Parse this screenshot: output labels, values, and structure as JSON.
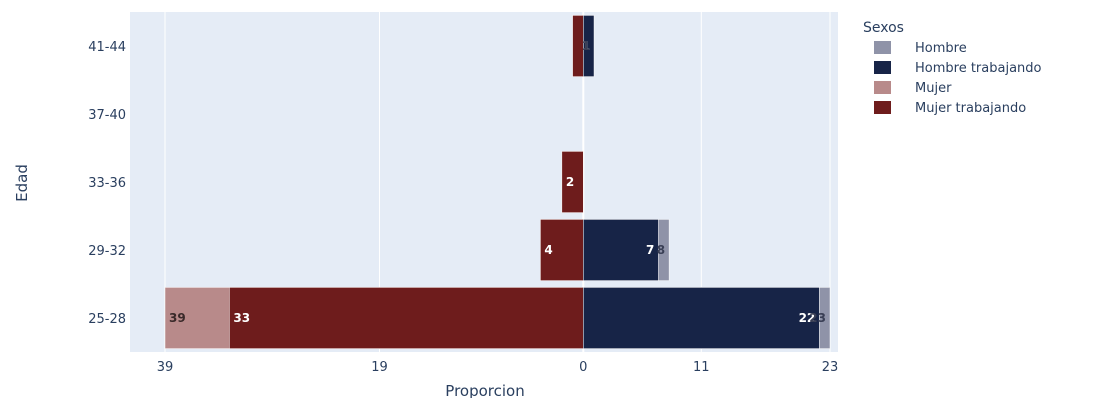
{
  "chart_data": {
    "type": "bar",
    "orientation": "horizontal",
    "barmode": "relative",
    "categories": [
      "25-28",
      "29-32",
      "33-36",
      "37-40",
      "41-44"
    ],
    "series": [
      {
        "name": "Hombre",
        "color": "#8f93a8",
        "side": "right",
        "values": [
          23,
          8,
          0,
          0,
          1
        ]
      },
      {
        "name": "Hombre trabajando",
        "color": "#172447",
        "side": "right",
        "values": [
          22,
          7,
          0,
          0,
          1
        ]
      },
      {
        "name": "Mujer",
        "color": "#b88a8a",
        "side": "left",
        "values": [
          39,
          4,
          2,
          0,
          1
        ]
      },
      {
        "name": "Mujer trabajando",
        "color": "#6e1c1c",
        "side": "left",
        "values": [
          33,
          4,
          2,
          0,
          1
        ]
      }
    ],
    "bar_labels": [
      {
        "series": "Mujer",
        "category": "25-28",
        "text": "39"
      },
      {
        "series": "Mujer trabajando",
        "category": "25-28",
        "text": "33"
      },
      {
        "series": "Hombre trabajando",
        "category": "25-28",
        "text": "22"
      },
      {
        "series": "Hombre",
        "category": "25-28",
        "text": "23"
      },
      {
        "series": "Mujer trabajando",
        "category": "29-32",
        "text": "4"
      },
      {
        "series": "Hombre trabajando",
        "category": "29-32",
        "text": "7"
      },
      {
        "series": "Hombre",
        "category": "29-32",
        "text": "8"
      },
      {
        "series": "Mujer trabajando",
        "category": "33-36",
        "text": "2"
      },
      {
        "series": "Hombre trabajando",
        "category": "41-44",
        "text": "1"
      },
      {
        "series": "Hombre",
        "category": "41-44",
        "text": "1"
      }
    ],
    "xlabel": "Proporcion",
    "ylabel": "Edad",
    "xlim": [
      -39,
      23
    ],
    "x_ticks": [
      {
        "value": -39,
        "label": "39"
      },
      {
        "value": -19,
        "label": "19"
      },
      {
        "value": 0,
        "label": "0"
      },
      {
        "value": 11,
        "label": "11"
      },
      {
        "value": 23,
        "label": "23"
      }
    ],
    "legend_title": "Sexos",
    "legend_position": "top-right",
    "grid": true,
    "plot_background": "#e5ecf6"
  }
}
